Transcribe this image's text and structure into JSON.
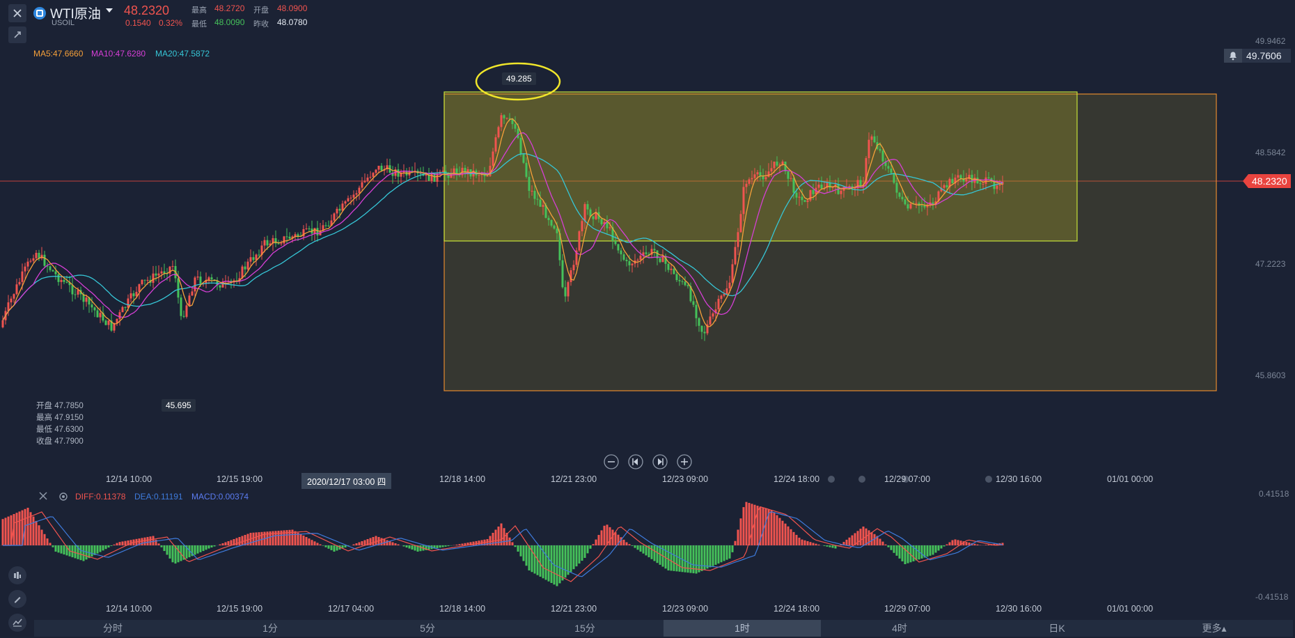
{
  "header": {
    "symbol_name": "WTI原油",
    "symbol_code": "USOIL",
    "price": "48.2320",
    "change": "0.1540",
    "change_pct": "0.32%",
    "high_label": "最高",
    "high": "48.2720",
    "open_label": "开盘",
    "open": "48.0900",
    "low_label": "最低",
    "low": "48.0090",
    "prev_close_label": "昨收",
    "prev_close": "48.0780"
  },
  "ma": {
    "ma5": "MA5:47.6660",
    "ma10": "MA10:47.6280",
    "ma20": "MA20:47.5872"
  },
  "price_axis": [
    "49.9462",
    "48.5842",
    "47.2223",
    "45.8603"
  ],
  "alert_price": "49.7606",
  "current_price_tag": "48.2320",
  "annotations": {
    "high_marker": "49.285",
    "low_marker": "45.695"
  },
  "ohlc_panel": {
    "open": "开盘 47.7850",
    "high": "最高 47.9150",
    "low": "最低 47.6300",
    "close": "收盘 47.7900"
  },
  "main_time_axis": [
    "12/14 10:00",
    "12/15 19:00",
    "12/18 14:00",
    "12/21 23:00",
    "12/23 09:00",
    "12/24 18:00",
    "12/29 07:00",
    "12/30 16:00",
    "01/01 00:00"
  ],
  "crosshair_time": "2020/12/17 03:00 四",
  "macd": {
    "diff": "DIFF:0.11378",
    "dea": "DEA:0.11191",
    "macd": "MACD:0.00374",
    "axis_top": "0.41518",
    "axis_bottom": "-0.41518"
  },
  "macd_time_axis": [
    "12/14 10:00",
    "12/15 19:00",
    "12/17 04:00",
    "12/18 14:00",
    "12/21 23:00",
    "12/23 09:00",
    "12/24 18:00",
    "12/29 07:00",
    "12/30 16:00",
    "01/01 00:00"
  ],
  "tabs": [
    {
      "label": "分时",
      "active": false
    },
    {
      "label": "1分",
      "active": false
    },
    {
      "label": "5分",
      "active": false
    },
    {
      "label": "15分",
      "active": false
    },
    {
      "label": "1时",
      "active": true
    },
    {
      "label": "4时",
      "active": false
    },
    {
      "label": "日K",
      "active": false
    },
    {
      "label": "更多▴",
      "active": false
    }
  ],
  "colors": {
    "up": "#f0544f",
    "down": "#45c15a",
    "ma5": "#f5a03a",
    "ma10": "#d63fd6",
    "ma20": "#36c6d6",
    "diff": "#f0544f",
    "dea": "#3e7bdc",
    "macd": "#5b7cf0"
  },
  "icons": [
    "close-icon",
    "settings-icon",
    "dropdown-icon",
    "bell-icon",
    "zoom-out-icon",
    "step-back-icon",
    "step-forward-icon",
    "zoom-in-icon",
    "eye-icon",
    "candle-type-icon",
    "pen-icon",
    "indicator-icon"
  ]
}
